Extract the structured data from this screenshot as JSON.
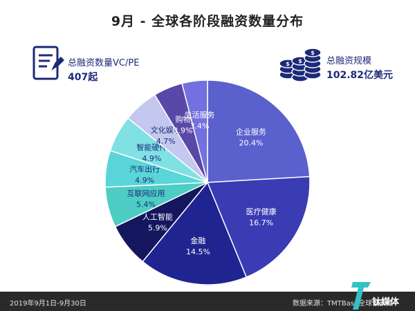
{
  "title": "9月 - 全球各阶段融资数量分布",
  "stats": {
    "left": {
      "label": "总融资数量VC/PE",
      "value": "407起",
      "icon": "document-pen-icon"
    },
    "right": {
      "label": "总融资规模",
      "value": "102.82亿美元",
      "icon": "coin-stack-icon"
    }
  },
  "chart_data": {
    "type": "pie",
    "title": "9月 - 全球各阶段融资数量分布",
    "slices": [
      {
        "label": "企业服务",
        "value": 20.4,
        "display": "20.4%",
        "color": "#5a60cc"
      },
      {
        "label": "医疗健康",
        "value": 16.7,
        "display": "16.7%",
        "color": "#3a3cb4"
      },
      {
        "label": "金融",
        "value": 14.5,
        "display": "14.5%",
        "color": "#202490"
      },
      {
        "label": "人工智能",
        "value": 5.9,
        "display": "5.9%",
        "color": "#14165e"
      },
      {
        "label": "互联网应用",
        "value": 5.4,
        "display": "5.4%",
        "color": "#4ecdc4"
      },
      {
        "label": "汽车出行",
        "value": 4.9,
        "display": "4.9%",
        "color": "#5ad6d8"
      },
      {
        "label": "智能硬件",
        "value": 4.9,
        "display": "4.9%",
        "color": "#80e0e4"
      },
      {
        "label": "文化娱乐",
        "value": 4.7,
        "display": "4.7%",
        "color": "#c4c8ee"
      },
      {
        "label": "购物",
        "value": 3.9,
        "display": "3.9%",
        "color": "#5a48a8"
      },
      {
        "label": "生活服务",
        "value": 3.4,
        "display": "3.4%",
        "color": "#7470e0"
      }
    ]
  },
  "footer": {
    "date_range": "2019年9月1日-9月30日",
    "source": "数据来源：TMTBase全球创新库",
    "brand": "钛媒体"
  }
}
